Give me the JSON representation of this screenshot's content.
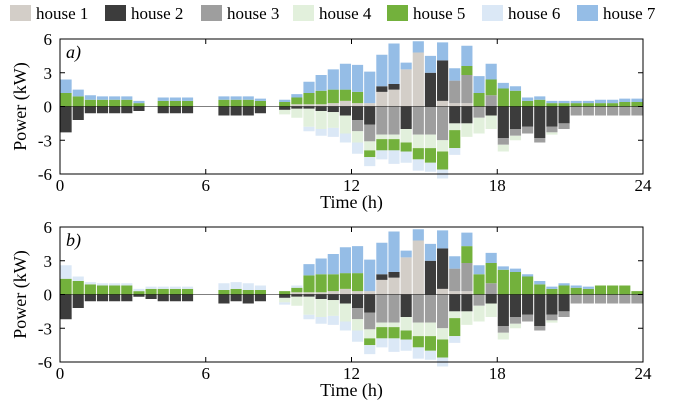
{
  "colors": {
    "house 1": "#d3cec8",
    "house 2": "#3c3c3c",
    "house 3": "#9e9e9e",
    "house 4": "#e2f0dc",
    "house 5": "#73b13c",
    "house 6": "#dbe8f6",
    "house 7": "#95bde6"
  },
  "chart_data": [
    {
      "type": "bar",
      "stacked": true,
      "diverging": true,
      "panel_label": "a)",
      "xlabel": "Time (h)",
      "ylabel": "Power (kW)",
      "xlim": [
        0,
        24
      ],
      "ylim": [
        -6,
        6
      ],
      "xticks": [
        0,
        6,
        12,
        18,
        24
      ],
      "yticks": [
        6,
        3,
        0,
        -3,
        -6
      ],
      "grid": false,
      "legend": "top",
      "bar_width_h": 0.5,
      "x": [
        0.25,
        0.75,
        1.25,
        1.75,
        2.25,
        2.75,
        3.25,
        3.75,
        4.25,
        4.75,
        5.25,
        5.75,
        6.25,
        6.75,
        7.25,
        7.75,
        8.25,
        8.75,
        9.25,
        9.75,
        10.25,
        10.75,
        11.25,
        11.75,
        12.25,
        12.75,
        13.25,
        13.75,
        14.25,
        14.75,
        15.25,
        15.75,
        16.25,
        16.75,
        17.25,
        17.75,
        18.25,
        18.75,
        19.25,
        19.75,
        20.25,
        20.75,
        21.25,
        21.75,
        22.25,
        22.75,
        23.25,
        23.75
      ],
      "series": [
        {
          "name": "house 1",
          "values": [
            0,
            0,
            0,
            0,
            0,
            0,
            0,
            0,
            0,
            0,
            0,
            0,
            0,
            0,
            0,
            0,
            0,
            0,
            0,
            0.2,
            0.2,
            0.2,
            0.3,
            0.5,
            0.3,
            0.3,
            1.3,
            1.5,
            3.3,
            4.8,
            0,
            0.5,
            0.3,
            0.3,
            0,
            0,
            0,
            0,
            0,
            0,
            0,
            0,
            0,
            0,
            0,
            0,
            0,
            0
          ]
        },
        {
          "name": "house 2",
          "values": [
            -2.3,
            -1.2,
            -0.6,
            -0.6,
            -0.6,
            -0.6,
            -0.4,
            0,
            -0.6,
            -0.6,
            -0.6,
            0,
            0,
            -0.8,
            -0.8,
            -0.8,
            -0.6,
            0,
            -0.3,
            -0.2,
            -0.2,
            -0.4,
            -0.5,
            -0.8,
            -1.2,
            -1.6,
            0.5,
            0.5,
            -2.0,
            0,
            3.0,
            3.6,
            -1.5,
            -1.5,
            0,
            -0.8,
            -2.8,
            -2.0,
            -1.8,
            -2.8,
            -1.8,
            -1.5,
            0,
            0,
            0,
            0,
            0,
            0
          ]
        },
        {
          "name": "house 3",
          "values": [
            0,
            0,
            0,
            0,
            0,
            0,
            0,
            0,
            0,
            0,
            0,
            0,
            0,
            0,
            0,
            0,
            0,
            0,
            0,
            0,
            0,
            0,
            0,
            0,
            -1.0,
            -1.5,
            -2.5,
            -2.5,
            0,
            -2.5,
            -2.5,
            -3.0,
            2.0,
            2.5,
            -1.0,
            1.0,
            -0.6,
            -0.6,
            -0.6,
            -0.4,
            -0.5,
            -0.5,
            -0.8,
            -0.8,
            -0.8,
            -0.8,
            -0.8,
            -0.8
          ]
        },
        {
          "name": "house 4",
          "values": [
            0,
            0,
            0,
            0,
            0,
            0,
            0,
            0,
            0,
            0,
            0,
            0,
            0,
            0,
            0,
            0,
            0,
            0,
            -0.4,
            -0.8,
            -1.6,
            -1.6,
            -1.4,
            -1.6,
            -1.0,
            -0.8,
            -0.4,
            -0.4,
            -1.2,
            -1.2,
            -1.2,
            -1.0,
            -0.6,
            -1.2,
            -1.4,
            -1.2,
            -0.6,
            -0.4,
            0,
            0,
            -0.2,
            0,
            0,
            0,
            0,
            0,
            0,
            0
          ]
        },
        {
          "name": "house 5",
          "values": [
            1.2,
            0.9,
            0.6,
            0.6,
            0.6,
            0.6,
            0.3,
            0,
            0.5,
            0.5,
            0.5,
            0,
            0,
            0.6,
            0.6,
            0.6,
            0.5,
            0,
            0.4,
            0.6,
            1.0,
            1.2,
            1.2,
            1.0,
            1.0,
            -0.6,
            -1.0,
            -1.0,
            -0.8,
            -1.0,
            -1.3,
            -1.6,
            -1.6,
            0.8,
            1.2,
            1.4,
            1.6,
            1.4,
            0.5,
            0.6,
            0.3,
            0.3,
            0.3,
            0.3,
            0.3,
            0.3,
            0.4,
            0.4
          ]
        },
        {
          "name": "house 6",
          "values": [
            0,
            0,
            0,
            0,
            0,
            0,
            0,
            0,
            0,
            0,
            0,
            0,
            0,
            0,
            0,
            0,
            0,
            0,
            0,
            0,
            -0.4,
            -0.6,
            -0.8,
            -0.8,
            -1.0,
            -0.8,
            -0.8,
            -1.2,
            -1.0,
            -1.0,
            -0.8,
            -0.8,
            -0.6,
            0,
            0,
            0,
            0,
            0,
            0,
            0,
            0,
            0,
            0,
            0,
            0,
            0,
            0,
            0
          ]
        },
        {
          "name": "house 7",
          "values": [
            1.2,
            0.6,
            0.4,
            0.3,
            0.3,
            0.3,
            0.2,
            0,
            0.3,
            0.3,
            0.3,
            0,
            0,
            0.3,
            0.3,
            0.3,
            0.2,
            0,
            0.2,
            0.3,
            1.0,
            1.4,
            1.8,
            2.3,
            2.4,
            2.8,
            2.8,
            3.6,
            0.6,
            1.0,
            1.5,
            1.6,
            1.1,
            1.8,
            1.5,
            1.4,
            0.5,
            0.4,
            0.3,
            0.3,
            0.2,
            0.2,
            0.2,
            0.2,
            0.3,
            0.3,
            0.3,
            0.3
          ]
        }
      ]
    },
    {
      "type": "bar",
      "stacked": true,
      "diverging": true,
      "panel_label": "b)",
      "xlabel": "Time (h)",
      "ylabel": "Power (kW)",
      "xlim": [
        0,
        24
      ],
      "ylim": [
        -6,
        6
      ],
      "xticks": [
        0,
        6,
        12,
        18,
        24
      ],
      "yticks": [
        6,
        3,
        0,
        -3,
        -6
      ],
      "grid": false,
      "legend": "top",
      "bar_width_h": 0.5,
      "x": [
        0.25,
        0.75,
        1.25,
        1.75,
        2.25,
        2.75,
        3.25,
        3.75,
        4.25,
        4.75,
        5.25,
        5.75,
        6.25,
        6.75,
        7.25,
        7.75,
        8.25,
        8.75,
        9.25,
        9.75,
        10.25,
        10.75,
        11.25,
        11.75,
        12.25,
        12.75,
        13.25,
        13.75,
        14.25,
        14.75,
        15.25,
        15.75,
        16.25,
        16.75,
        17.25,
        17.75,
        18.25,
        18.75,
        19.25,
        19.75,
        20.25,
        20.75,
        21.25,
        21.75,
        22.25,
        22.75,
        23.25,
        23.75
      ],
      "series": [
        {
          "name": "house 1",
          "values": [
            0,
            0,
            0,
            0,
            0,
            0,
            0,
            0,
            0,
            0,
            0,
            0,
            0,
            0,
            0,
            0,
            0,
            0,
            0,
            0.2,
            0.2,
            0.2,
            0.3,
            0.5,
            0.3,
            0.3,
            1.3,
            1.5,
            3.3,
            4.8,
            0,
            0.5,
            0.3,
            0.3,
            0,
            0,
            0,
            0,
            0,
            0,
            0,
            0,
            0,
            0,
            0,
            0,
            0,
            0
          ]
        },
        {
          "name": "house 2",
          "values": [
            -2.2,
            -1.2,
            -0.6,
            -0.6,
            -0.6,
            -0.6,
            -0.2,
            -0.4,
            -0.6,
            -0.6,
            -0.6,
            0,
            0,
            -0.8,
            -0.6,
            -0.8,
            -0.6,
            0,
            -0.3,
            -0.2,
            -0.2,
            -0.4,
            -0.5,
            -0.8,
            -1.2,
            -1.6,
            0.5,
            0.5,
            -2.0,
            0,
            3.0,
            3.6,
            -1.5,
            -1.5,
            0,
            -0.8,
            -2.8,
            -2.0,
            -1.8,
            -2.8,
            -1.8,
            -1.5,
            0,
            0,
            0,
            0,
            0,
            0
          ]
        },
        {
          "name": "house 3",
          "values": [
            0,
            0,
            0,
            0,
            0,
            0,
            0,
            0,
            0,
            0,
            0,
            0,
            0,
            0,
            0,
            0,
            0,
            0,
            0,
            0,
            0,
            0,
            0,
            0,
            -1.0,
            -1.5,
            -2.5,
            -2.5,
            0,
            -2.5,
            -2.5,
            -3.0,
            2.0,
            2.5,
            -1.0,
            1.0,
            -0.6,
            -0.6,
            -0.6,
            -0.4,
            -0.5,
            -0.5,
            -0.8,
            -0.8,
            -0.8,
            -0.8,
            -0.8,
            -0.8
          ]
        },
        {
          "name": "house 4",
          "values": [
            0,
            0,
            0,
            0,
            0,
            0,
            0,
            0,
            0,
            0,
            0,
            0,
            0,
            0,
            0,
            0,
            0,
            0,
            -0.4,
            -0.8,
            -1.6,
            -1.6,
            -1.4,
            -1.6,
            -1.0,
            -0.8,
            -0.4,
            -0.4,
            -1.2,
            -1.2,
            -1.2,
            -1.0,
            -0.6,
            -1.2,
            -1.4,
            -1.2,
            -0.6,
            -0.4,
            0,
            0,
            -0.2,
            0,
            0,
            0,
            0,
            0,
            0,
            0
          ]
        },
        {
          "name": "house 5",
          "values": [
            1.4,
            1.2,
            0.9,
            0.8,
            0.8,
            0.8,
            0.3,
            0.5,
            0.5,
            0.5,
            0.5,
            0,
            0,
            0.4,
            0.5,
            0.4,
            0.4,
            0,
            0.3,
            0.4,
            1.5,
            1.6,
            1.5,
            1.4,
            1.6,
            -0.6,
            -1.0,
            -1.0,
            -0.8,
            -1.0,
            -1.3,
            -1.6,
            -1.6,
            1.5,
            1.8,
            1.8,
            2.2,
            2.0,
            1.6,
            0.9,
            0.5,
            0.8,
            0.6,
            0.5,
            0.8,
            0.8,
            0.8,
            0.3
          ]
        },
        {
          "name": "house 6",
          "values": [
            1.2,
            0.4,
            0.2,
            0.2,
            0.2,
            0.2,
            0.2,
            0.2,
            0.2,
            0.2,
            0.2,
            0,
            0,
            0.6,
            0.6,
            0.6,
            0.4,
            0,
            -0.2,
            0.2,
            -0.4,
            -0.6,
            -0.8,
            -0.8,
            -1.0,
            -0.8,
            -0.8,
            -1.2,
            -1.0,
            -1.0,
            -0.8,
            -0.8,
            -0.6,
            0,
            0,
            0,
            0,
            0,
            0,
            0,
            0,
            0,
            0,
            0,
            0,
            0,
            0,
            0
          ]
        },
        {
          "name": "house 7",
          "values": [
            0,
            0,
            0,
            0,
            0,
            0,
            0,
            0,
            0,
            0,
            0,
            0,
            0,
            0,
            0,
            0,
            0,
            0,
            0,
            0,
            1.0,
            1.4,
            1.8,
            2.3,
            2.4,
            2.8,
            2.8,
            3.6,
            0.6,
            1.0,
            1.5,
            1.6,
            1.1,
            1.2,
            0.8,
            0.9,
            0.3,
            0.3,
            0.2,
            0.3,
            0.2,
            0.2,
            0.2,
            0.2,
            0,
            0,
            0,
            0
          ]
        }
      ]
    }
  ]
}
